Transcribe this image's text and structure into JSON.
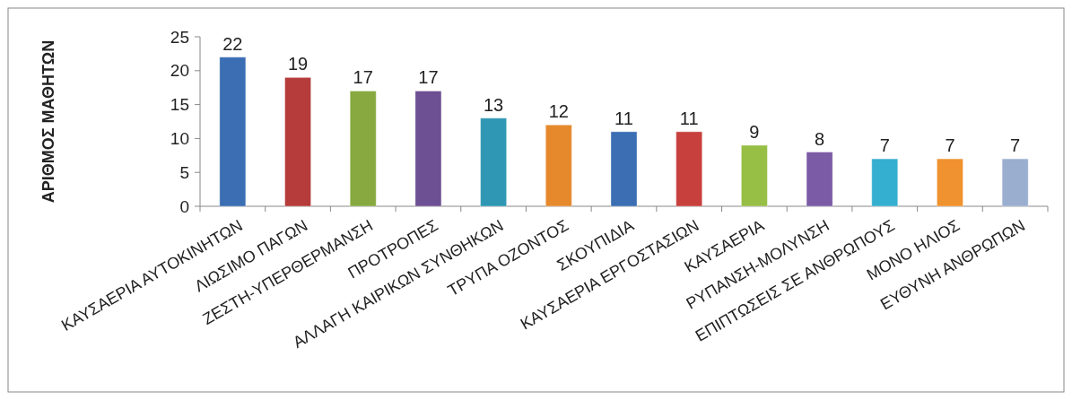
{
  "chart_data": {
    "type": "bar",
    "ylabel": "ΑΡΙΘΜΟΣ ΜΑΘΗΤΩΝ",
    "categories": [
      "ΚΑΥΣΑΕΡΙΑ ΑΥΤΟΚΙΝΗΤΩΝ",
      "ΛΙΩΣΙΜΟ ΠΑΓΩΝ",
      "ΖΕΣΤΗ-ΥΠΕΡΘΕΡΜΑΝΣΗ",
      "ΠΡΟΤΡΟΠΕΣ",
      "ΑΛΛΑΓΗ ΚΑΙΡΙΚΩΝ ΣΥΝΘΗΚΩΝ",
      "ΤΡΥΠΑ ΟΖΟΝΤΟΣ",
      "ΣΚΟΥΠΙΔΙΑ",
      "ΚΑΥΣΑΕΡΙΑ ΕΡΓΟΣΤΑΣΙΩΝ",
      "ΚΑΥΣΑΕΡΙΑ",
      "ΡΥΠΑΝΣΗ-ΜΟΛΥΝΣΗ",
      "ΕΠΙΠΤΩΣΕΙΣ ΣΕ ΑΝΘΡΩΠΟΥΣ",
      "ΜΟΝΟ ΗΛΙΟΣ",
      "ΕΥΘΥΝΗ ΑΝΘΡΩΠΩΝ"
    ],
    "values": [
      22,
      19,
      17,
      17,
      13,
      12,
      11,
      11,
      9,
      8,
      7,
      7,
      7
    ],
    "colors": [
      "#3b6eb3",
      "#b53c3a",
      "#87a93f",
      "#6d4f93",
      "#2f97b3",
      "#e5892c",
      "#3b6eb3",
      "#c8403d",
      "#97be45",
      "#7b5aa6",
      "#35afd0",
      "#f0922f",
      "#9aaed0"
    ],
    "ylim": [
      0,
      25
    ],
    "yticks": [
      0,
      5,
      10,
      15,
      20,
      25
    ],
    "grid": false,
    "data_labels": true
  }
}
